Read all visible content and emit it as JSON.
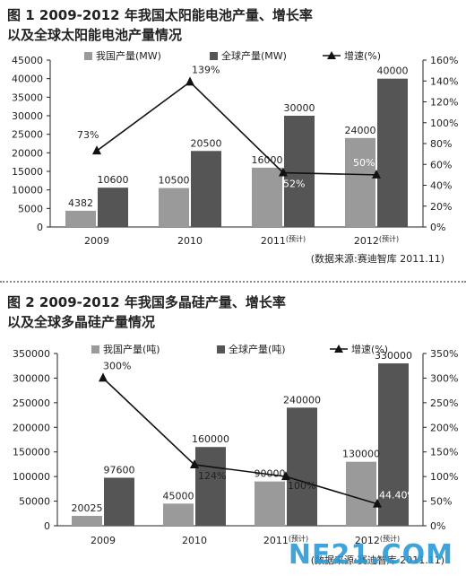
{
  "watermark": "NE21.COM",
  "chart_data": [
    {
      "type": "bar",
      "title_line1": "图 1   2009-2012 年我国太阳能电池产量、增长率",
      "title_line2": "以及全球太阳能电池产量情况",
      "categories": [
        "2009",
        "2010",
        "2011",
        "2012"
      ],
      "category_suffix": [
        "",
        "",
        "(预计)",
        "(预计)"
      ],
      "series": [
        {
          "name": "我国产量(MW)",
          "color": "#9a9a9a",
          "values": [
            4382,
            10500,
            16000,
            24000
          ]
        },
        {
          "name": "全球产量(MW)",
          "color": "#555555",
          "values": [
            10600,
            20500,
            30000,
            40000
          ]
        }
      ],
      "line": {
        "name": "增速(%)",
        "values": [
          73,
          139,
          52,
          50
        ],
        "labels": [
          "73%",
          "139%",
          "52%",
          "50%"
        ]
      },
      "ylim": [
        0,
        45000
      ],
      "yticks": [
        "0",
        "5000",
        "10000",
        "15000",
        "20000",
        "25000",
        "30000",
        "35000",
        "40000",
        "45000"
      ],
      "y2lim": [
        0,
        160
      ],
      "y2ticks": [
        "0%",
        "20%",
        "40%",
        "60%",
        "80%",
        "100%",
        "120%",
        "140%",
        "160%"
      ],
      "source": "(数据来源:赛迪智库 2011.11)"
    },
    {
      "type": "bar",
      "title_line1": "图 2   2009-2012 年我国多晶硅产量、增长率",
      "title_line2": "以及全球多晶硅产量情况",
      "categories": [
        "2009",
        "2010",
        "2011",
        "2012"
      ],
      "category_suffix": [
        "",
        "",
        "(预计)",
        "(预计)"
      ],
      "series": [
        {
          "name": "我国产量(吨)",
          "color": "#9a9a9a",
          "values": [
            20025,
            45000,
            90000,
            130000
          ]
        },
        {
          "name": "全球产量(吨)",
          "color": "#555555",
          "values": [
            97600,
            160000,
            240000,
            330000
          ]
        }
      ],
      "line": {
        "name": "增速(%)",
        "values": [
          300,
          124,
          100,
          44.4
        ],
        "labels": [
          "300%",
          "124%",
          "100%",
          "44.40%"
        ]
      },
      "ylim": [
        0,
        350000
      ],
      "yticks": [
        "0",
        "50000",
        "100000",
        "150000",
        "200000",
        "250000",
        "300000",
        "350000"
      ],
      "y2lim": [
        0,
        350
      ],
      "y2ticks": [
        "0%",
        "50%",
        "100%",
        "150%",
        "200%",
        "250%",
        "300%",
        "350%"
      ],
      "source": "(数据来源:赛迪智库 2011.11)"
    }
  ]
}
